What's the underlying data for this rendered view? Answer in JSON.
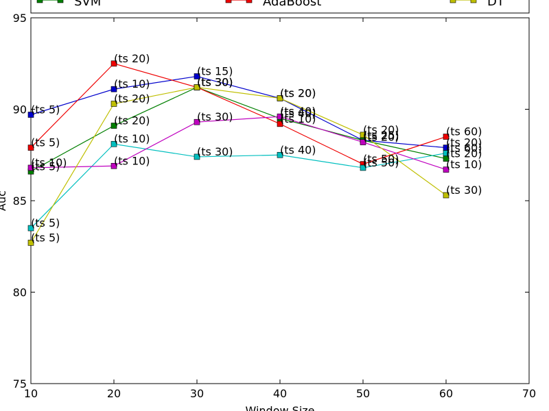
{
  "chart_data": {
    "type": "line",
    "xlabel": "Window Size",
    "ylabel": "Auc",
    "xlim": [
      10,
      70
    ],
    "ylim": [
      75,
      95
    ],
    "xticks": [
      10,
      20,
      30,
      40,
      50,
      60,
      70
    ],
    "yticks": [
      75,
      80,
      85,
      90,
      95
    ],
    "grid": false,
    "legend_placement": "top",
    "legend_visible": [
      "SVM",
      "AdaBoost",
      "DT"
    ],
    "series": [
      {
        "name": "",
        "color": "#0000cc",
        "x": [
          10,
          20,
          30,
          40,
          50,
          60
        ],
        "y": [
          89.7,
          91.1,
          91.8,
          90.6,
          88.3,
          87.9
        ],
        "labels": [
          "(ts 5)",
          "(ts 10)",
          "(ts 15)",
          "(ts 20)",
          "(ts 25)",
          "(ts 20)"
        ]
      },
      {
        "name": "SVM",
        "color": "#007f00",
        "x": [
          10,
          20,
          30,
          40,
          50,
          60
        ],
        "y": [
          86.6,
          89.1,
          91.2,
          89.5,
          88.3,
          87.3
        ],
        "labels": [
          "(ts 5)",
          "(ts 20)",
          "(ts 30)",
          "(ts 40)",
          "(ts 25)",
          "(ts 20)"
        ]
      },
      {
        "name": "AdaBoost",
        "color": "#ee0000",
        "x": [
          10,
          20,
          30,
          40,
          50,
          60
        ],
        "y": [
          87.9,
          92.5,
          91.2,
          89.2,
          87.0,
          88.5
        ],
        "labels": [
          "(ts 5)",
          "(ts 20)",
          "(ts 30)",
          "(ts 10)",
          "(ts 50)",
          "(ts 60)"
        ]
      },
      {
        "name": "",
        "color": "#00bfbf",
        "x": [
          10,
          20,
          30,
          40,
          50,
          60
        ],
        "y": [
          83.5,
          88.1,
          87.4,
          87.5,
          86.8,
          87.6
        ],
        "labels": [
          "(ts 5)",
          "(ts 10)",
          "(ts 30)",
          "(ts 40)",
          "(ts 50)",
          "(ts 60)"
        ]
      },
      {
        "name": "",
        "color": "#bf00bf",
        "x": [
          10,
          20,
          30,
          40,
          50,
          60
        ],
        "y": [
          86.8,
          86.9,
          89.3,
          89.6,
          88.2,
          86.7
        ],
        "labels": [
          "(ts 10)",
          "(ts 10)",
          "(ts 30)",
          "(ts 40)",
          "(ts 20)",
          "(ts 10)"
        ]
      },
      {
        "name": "DT",
        "color": "#bfbf00",
        "x": [
          10,
          20,
          30,
          40,
          50,
          60
        ],
        "y": [
          82.7,
          90.3,
          91.2,
          90.6,
          88.6,
          85.3
        ],
        "labels": [
          "(ts 5)",
          "(ts 20)",
          "(ts 30)",
          "(ts 20)",
          "(ts 20)",
          "(ts 30)"
        ]
      }
    ]
  }
}
